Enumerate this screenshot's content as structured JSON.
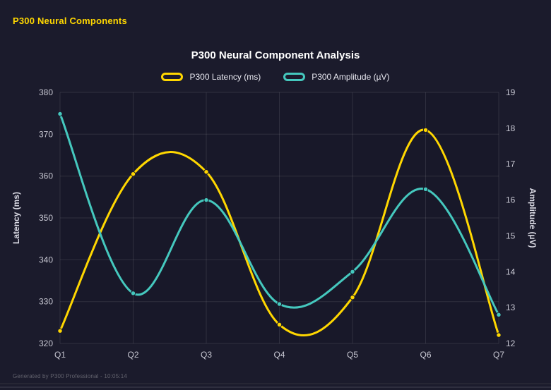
{
  "page": {
    "header_title": "P300 Neural Components",
    "footer_text": "Generated by P300 Professional - 10:05:14"
  },
  "colors": {
    "background": "#1b1b2c",
    "plot_background": "#181829",
    "grid": "rgba(255,255,255,0.10)",
    "tick_text": "#c7c7d2",
    "axis_title_text": "#d8d8e2",
    "title_text": "#ffffff",
    "header_text": "#ffd700",
    "latency": "#ffd700",
    "amplitude": "#45c8be"
  },
  "chart_data": {
    "type": "line",
    "title": "P300 Neural Component Analysis",
    "categories": [
      "Q1",
      "Q2",
      "Q3",
      "Q4",
      "Q5",
      "Q6",
      "Q7"
    ],
    "series": [
      {
        "name": "P300 Latency (ms)",
        "axis": "left",
        "color": "#ffd700",
        "values": [
          323,
          360.5,
          361,
          324.5,
          331,
          371,
          322
        ]
      },
      {
        "name": "P300 Amplitude (µV)",
        "axis": "right",
        "color": "#45c8be",
        "values": [
          18.4,
          13.4,
          16.0,
          13.1,
          14.0,
          16.3,
          12.8
        ]
      }
    ],
    "left_axis": {
      "label": "Latency (ms)",
      "min": 320,
      "max": 380,
      "step": 10
    },
    "right_axis": {
      "label": "Amplitude (µV)",
      "min": 12,
      "max": 19,
      "step": 1
    },
    "grid": true,
    "legend_position": "top",
    "smoothing": "cubic-spline"
  }
}
